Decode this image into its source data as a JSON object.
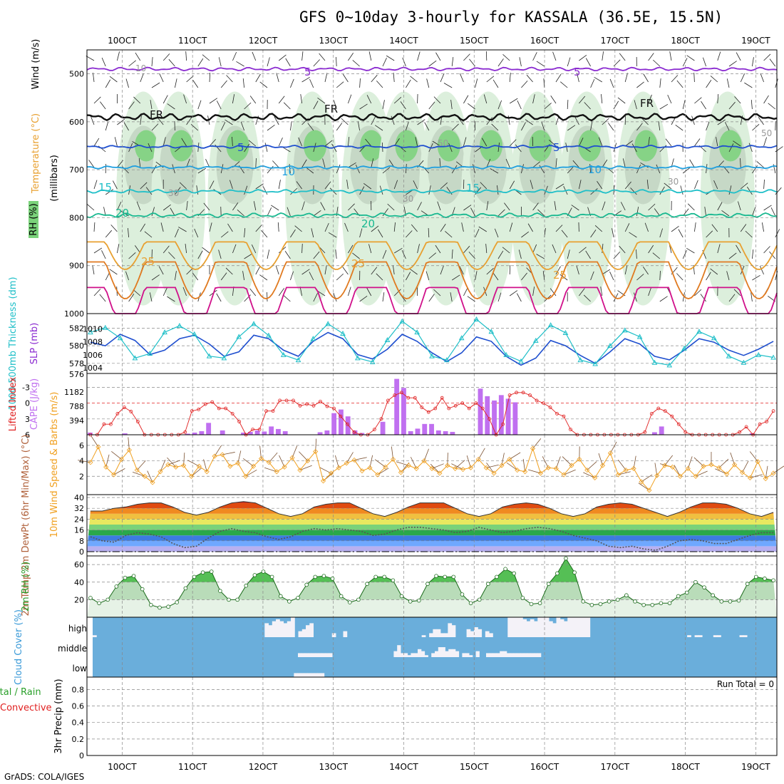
{
  "title": "GFS 0~10day 3-hourly for KASSALA (36.5E, 15.5N)",
  "footer": "GrADS: COLA/IGES",
  "colors": {
    "rh_green": "#7ad27a",
    "rh_light": "#dcefdc",
    "rh_gray": "#b8c8b8",
    "purple": "#8a2ad0",
    "blue": "#1f4fcf",
    "lightblue": "#1f9fdf",
    "cyan": "#1fbfc8",
    "teal": "#18b890",
    "orange": "#e8a030",
    "darkorange": "#e07a20",
    "magenta": "#d0108a",
    "red": "#e02020",
    "cape": "#c070f0",
    "wind10": "#f0a020",
    "sky": "#6aaedb"
  },
  "chart_data": [
    {
      "type": "heatmap",
      "panel": "upper-air",
      "x_ticks": [
        "10OCT",
        "11OCT",
        "12OCT",
        "13OCT",
        "14OCT",
        "15OCT",
        "16OCT",
        "17OCT",
        "18OCT",
        "19OCT"
      ],
      "x_days": [
        1,
        2,
        3,
        4,
        5,
        6,
        7,
        8,
        9,
        10
      ],
      "xlim": [
        0.5,
        10.3
      ],
      "ylabel": "(millibars)",
      "yticks": [
        500,
        600,
        700,
        800,
        900,
        1000
      ],
      "ylim": [
        1000,
        450
      ],
      "side_labels": {
        "rh": "RH (%)",
        "temp": "Temperature (°C)",
        "wind": "Wind (m/s)"
      },
      "contour_labels": [
        "5",
        "FR",
        "FR",
        "FR",
        "5",
        "5",
        "5",
        "10",
        "10",
        "15",
        "15",
        "20",
        "20",
        "25",
        "25",
        "25",
        "30",
        "30",
        "30",
        "50",
        "50",
        "10"
      ],
      "isotherms": [
        {
          "name": "5 upper",
          "level": 490,
          "amp": 6
        },
        {
          "name": "FR",
          "level": 590,
          "amp": 12
        },
        {
          "name": "5",
          "level": 652,
          "amp": 5
        },
        {
          "name": "10",
          "level": 695,
          "amp": 5
        },
        {
          "name": "15",
          "level": 745,
          "amp": 6
        },
        {
          "name": "20",
          "level": 795,
          "amp": 8
        },
        {
          "name": "25",
          "level": 860,
          "amp": 30
        },
        {
          "name": "30",
          "level": 905,
          "amp": 40
        },
        {
          "name": "35",
          "level": 960,
          "amp": 45
        }
      ],
      "moist_days": [
        1.3,
        1.8,
        2.6,
        3.7,
        4.5,
        5.0,
        5.6,
        6.2,
        6.9,
        7.6,
        8.4,
        9.6
      ]
    },
    {
      "type": "line",
      "panel": "thickness-slp",
      "ylabel_left": "1000-500mb Thickness (dm)",
      "ylabel_right": "SLP (mb)",
      "left_ticks": [
        "578",
        "580",
        "582"
      ],
      "right_ticks": [
        "1004",
        "1006",
        "1008",
        "1010"
      ],
      "bottom_label": "576",
      "series": [
        {
          "name": "thickness",
          "values": [
            580.4,
            580.0,
            581.3,
            580.6,
            579.0,
            579.5,
            580.8,
            581.2,
            580.2,
            578.8,
            579.3,
            581.2,
            580.8,
            579.5,
            578.8,
            580.5,
            581.5,
            580.8,
            579.0,
            578.5,
            579.6,
            581.3,
            580.5,
            579.2,
            578.2,
            579.2,
            581.0,
            580.5,
            578.8,
            577.8,
            578.6,
            580.6,
            580.0,
            578.9,
            578.0,
            579.3,
            580.8,
            580.2,
            578.8,
            578.4,
            579.5,
            580.8,
            580.4,
            579.5,
            578.9,
            579.6,
            580.5
          ]
        },
        {
          "name": "slp",
          "values": [
            1009.5,
            1010.2,
            1008.6,
            1005.5,
            1006.2,
            1009.5,
            1010.5,
            1009.2,
            1005.8,
            1005.5,
            1008.8,
            1010.8,
            1009.0,
            1006.0,
            1005.2,
            1008.5,
            1010.8,
            1009.3,
            1005.5,
            1004.9,
            1008.3,
            1011.2,
            1009.5,
            1005.8,
            1005.2,
            1008.6,
            1011.5,
            1009.6,
            1006.0,
            1005.0,
            1008.2,
            1010.6,
            1009.4,
            1005.2,
            1004.6,
            1007.4,
            1009.8,
            1008.8,
            1004.8,
            1004.4,
            1007.0,
            1009.6,
            1008.6,
            1005.8,
            1004.8,
            1006.0,
            1005.6
          ]
        }
      ]
    },
    {
      "type": "bar",
      "panel": "cape-li",
      "ylabel_left": "Lifted Index",
      "ylabel_right": "CAPE (J/kg)",
      "left_ticks": [
        "-3",
        "0",
        "3",
        "6"
      ],
      "right_ticks": [
        "1182",
        "788",
        "394"
      ],
      "li_dashed_zero": true,
      "cape": [
        60,
        0,
        0,
        0,
        0,
        40,
        0,
        0,
        0,
        0,
        0,
        0,
        0,
        0,
        30,
        60,
        100,
        330,
        0,
        120,
        0,
        0,
        60,
        80,
        120,
        90,
        230,
        160,
        100,
        0,
        0,
        0,
        0,
        70,
        120,
        600,
        700,
        510,
        120,
        50,
        0,
        0,
        360,
        0,
        1550,
        1300,
        100,
        170,
        300,
        300,
        120,
        100,
        80,
        0,
        0,
        0,
        1280,
        1070,
        950,
        1100,
        1000,
        900,
        0,
        0,
        0,
        0,
        0,
        0,
        0,
        0,
        0,
        0,
        0,
        0,
        0,
        0,
        0,
        0,
        0,
        0,
        0,
        70,
        230,
        0,
        0,
        0,
        0,
        0,
        0,
        0,
        0,
        0,
        0,
        0,
        0,
        40,
        0,
        0,
        0
      ],
      "li": [
        6,
        6,
        4,
        4,
        2,
        0.8,
        1.6,
        3.5,
        6,
        6,
        6,
        6,
        6,
        6,
        5.5,
        1.5,
        1.2,
        0.2,
        -0.2,
        1,
        1,
        2,
        3.5,
        6,
        5,
        5,
        1.5,
        1.5,
        -0.5,
        -0.5,
        -0.5,
        0.5,
        0.2,
        0.5,
        -0.3,
        0.6,
        1,
        2.5,
        4,
        5.5,
        6,
        6,
        5,
        3,
        -0.5,
        -1.5,
        -2,
        -1,
        -1,
        0.8,
        1.7,
        1,
        -1,
        1,
        0.5,
        0,
        1,
        0,
        1,
        3,
        6,
        4,
        -1.5,
        -2,
        -2,
        -1.5,
        -0.5,
        0,
        0.8,
        2,
        2.5,
        5,
        6,
        6,
        6,
        6,
        6,
        6,
        6,
        6,
        6,
        6,
        5.5,
        2,
        1,
        1.5,
        2.5,
        4,
        5.5,
        6,
        6,
        6,
        6,
        6,
        6,
        6,
        5.5,
        4.5,
        6,
        4,
        3.5,
        1.5
      ]
    },
    {
      "type": "line",
      "panel": "wind10m",
      "ylabel": "10m Wind Speed & Barbs (m/s)",
      "yticks": [
        "2",
        "4",
        "6"
      ],
      "ylim": [
        0,
        7
      ],
      "values": [
        3.8,
        5.8,
        3.2,
        2.2,
        4.2,
        5.4,
        2.8,
        2.0,
        1.2,
        2.6,
        3.5,
        3.2,
        3.4,
        2.0,
        3.3,
        2.6,
        4.6,
        4.8,
        3.3,
        3.7,
        2.0,
        3.3,
        4.3,
        3.8,
        2.6,
        3.2,
        4.4,
        2.8,
        4.0,
        5.2,
        1.4,
        2.4,
        3.1,
        3.7,
        4.1,
        2.7,
        3.1,
        2.2,
        3.2,
        4.2,
        2.5,
        3.4,
        3.0,
        4.0,
        3.0,
        2.4,
        3.4,
        3.0,
        2.9,
        3.1,
        4.2,
        3.1,
        2.4,
        3.4,
        4.2,
        2.8,
        2.6,
        5.6,
        2.4,
        3.1,
        3.0,
        2.2,
        3.4,
        4.2,
        2.8,
        1.8,
        3.4,
        5.0,
        2.2,
        2.8,
        3.0,
        1.3,
        0.2,
        2.1,
        3.4,
        3.2,
        2.0,
        3.0,
        2.0,
        3.3,
        3.5,
        3.1,
        2.3,
        3.5,
        2.5,
        1.8,
        3.9,
        1.7,
        2.4
      ]
    },
    {
      "type": "area",
      "panel": "temp2m",
      "ylabel": "2m Temp 2m DewPt (6hr Min/Max) (°C)",
      "yticks": [
        "0",
        "8",
        "16",
        "24",
        "32",
        "40"
      ],
      "ylim": [
        0,
        40
      ],
      "temp": [
        30,
        30,
        32,
        33,
        35,
        36,
        36,
        33,
        29,
        27,
        29,
        33,
        36,
        37,
        36,
        32,
        28,
        26,
        28,
        33,
        35,
        36,
        36,
        32,
        28,
        26,
        29,
        33,
        36,
        36,
        36,
        32,
        28,
        26,
        28,
        33,
        35,
        36,
        35,
        32,
        28,
        26,
        28,
        33,
        35,
        36,
        35,
        32,
        29,
        26,
        29,
        33,
        36,
        36,
        35,
        32,
        28,
        26,
        29
      ],
      "dewpt": [
        11,
        8,
        7,
        12,
        14,
        13,
        11,
        6,
        3,
        4,
        10,
        15,
        17,
        15,
        14,
        11,
        9,
        11,
        15,
        17,
        16,
        17,
        16,
        15,
        12,
        13,
        16,
        18,
        18,
        17,
        16,
        14,
        15,
        18,
        16,
        14,
        15,
        17,
        18,
        17,
        15,
        12,
        10,
        8,
        4,
        3,
        4,
        2,
        1,
        4,
        8,
        9,
        8,
        6,
        6,
        9,
        12,
        14,
        14
      ]
    },
    {
      "type": "area",
      "panel": "rh2m",
      "ylabel": "2m RH (%)",
      "yticks": [
        "20",
        "40",
        "60"
      ],
      "ylim": [
        0,
        65
      ],
      "values": [
        22,
        16,
        20,
        35,
        45,
        47,
        32,
        14,
        11,
        12,
        17,
        33,
        46,
        51,
        52,
        30,
        20,
        20,
        36,
        48,
        52,
        46,
        24,
        18,
        22,
        37,
        46,
        47,
        44,
        24,
        17,
        20,
        38,
        46,
        46,
        42,
        24,
        18,
        19,
        38,
        47,
        46,
        46,
        26,
        16,
        20,
        38,
        46,
        55,
        50,
        22,
        15,
        16,
        38,
        50,
        67,
        51,
        18,
        14,
        15,
        18,
        20,
        25,
        18,
        14,
        14,
        16,
        16,
        24,
        28,
        40,
        34,
        25,
        18,
        18,
        19,
        38,
        46,
        44,
        42
      ]
    },
    {
      "type": "heatmap",
      "panel": "cloud-cover",
      "ylabel": "Cloud Cover (%)",
      "rows": [
        "high",
        "middle",
        "low"
      ],
      "high": [
        10,
        0,
        0,
        0,
        0,
        0,
        0,
        0,
        0,
        0,
        0,
        0,
        0,
        0,
        0,
        0,
        0,
        0,
        0,
        0,
        0,
        0,
        0,
        0,
        0,
        0,
        0,
        0,
        0,
        0,
        0,
        0,
        0,
        0,
        0,
        0,
        0,
        0,
        0,
        0,
        0,
        0,
        0,
        0,
        0,
        0,
        70,
        60,
        80,
        90,
        80,
        70,
        80,
        100,
        0,
        30,
        40,
        60,
        70,
        0,
        0,
        0,
        0,
        0,
        20,
        0,
        0,
        30,
        0,
        0,
        0,
        0,
        0,
        0,
        0,
        0,
        0,
        0,
        0,
        0,
        0,
        0,
        0,
        0,
        0,
        0,
        0,
        0,
        10,
        0,
        20,
        40,
        40,
        20,
        20,
        70,
        60,
        0,
        0,
        0,
        40,
        30,
        50,
        40,
        0,
        30,
        20,
        0,
        0,
        0,
        0,
        100,
        100,
        100,
        100,
        90,
        80,
        90,
        80,
        100,
        100,
        100,
        80,
        70,
        100,
        90,
        80,
        100,
        100,
        100,
        100,
        100,
        100,
        0,
        0,
        0,
        0,
        0,
        0,
        0,
        0,
        0,
        0,
        0,
        0,
        0,
        0,
        0,
        0,
        0,
        0,
        0,
        0,
        0,
        0,
        0,
        0,
        0,
        0,
        10,
        0,
        10,
        10,
        0,
        0,
        0,
        10,
        10,
        0,
        0,
        0,
        0,
        0,
        10,
        10,
        0,
        0,
        0,
        0,
        0,
        0,
        0,
        0
      ],
      "middle": [
        0,
        0,
        0,
        0,
        0,
        0,
        0,
        0,
        0,
        0,
        0,
        0,
        0,
        0,
        0,
        0,
        0,
        0,
        0,
        0,
        0,
        0,
        0,
        0,
        0,
        0,
        0,
        0,
        0,
        0,
        0,
        0,
        0,
        0,
        0,
        0,
        0,
        0,
        0,
        0,
        0,
        0,
        0,
        0,
        0,
        0,
        0,
        0,
        0,
        0,
        0,
        0,
        0,
        0,
        0,
        0,
        0,
        0,
        0,
        0,
        20,
        20,
        20,
        20,
        20,
        20,
        20,
        20,
        20,
        20,
        0,
        0,
        0,
        0,
        0,
        0,
        0,
        0,
        0,
        0,
        0,
        0,
        0,
        0,
        0,
        0,
        0,
        0,
        30,
        60,
        20,
        20,
        10,
        20,
        20,
        40,
        30,
        10,
        0,
        20,
        30,
        50,
        50,
        30,
        40,
        40,
        30,
        0,
        20,
        20,
        10,
        0,
        30,
        0,
        0,
        20,
        20,
        20,
        20,
        30,
        30,
        20,
        20,
        20,
        20,
        20,
        20,
        20,
        20,
        20,
        20,
        0,
        0,
        0,
        0,
        0,
        0,
        0,
        0,
        0,
        0,
        0,
        0,
        0,
        0,
        0,
        0,
        0,
        0,
        0,
        0,
        0,
        0,
        0,
        0,
        0,
        0,
        0,
        0,
        0,
        0,
        0,
        0,
        0,
        0,
        0,
        0,
        0,
        0,
        0,
        0,
        0,
        0,
        0,
        0,
        0,
        0,
        0,
        0,
        0,
        0,
        0,
        0,
        0,
        0,
        0,
        0,
        0,
        0,
        0,
        0,
        0,
        0,
        0,
        0,
        0,
        0,
        0,
        0,
        0
      ],
      "low": [
        0,
        0,
        0,
        0,
        0,
        0,
        0,
        0,
        0,
        0,
        0,
        0,
        0,
        0,
        0,
        0,
        0,
        0,
        0,
        0,
        0,
        0,
        0,
        0,
        0,
        0,
        0,
        0,
        0,
        0,
        0,
        0,
        0,
        0,
        0,
        0,
        0,
        0,
        0,
        0,
        0,
        0,
        0,
        0,
        0,
        0,
        0,
        0,
        0,
        0,
        0,
        0,
        0,
        0,
        0,
        0,
        0,
        0,
        0,
        0,
        20,
        20,
        20,
        20,
        20,
        20,
        20,
        20,
        20,
        0,
        0,
        0,
        0,
        0,
        0,
        0,
        0,
        0,
        0,
        0,
        0,
        0,
        0,
        0,
        0,
        0,
        0,
        0,
        0,
        0,
        0,
        0,
        0,
        0,
        0,
        0,
        0,
        0,
        0,
        0,
        0,
        0,
        0,
        0,
        0,
        0,
        0,
        0,
        0,
        0,
        0,
        0,
        0,
        0,
        0,
        0,
        0,
        0,
        0,
        0,
        0,
        0,
        0,
        0,
        0,
        0,
        0,
        0,
        0,
        0,
        0,
        0,
        0,
        0,
        0,
        0,
        0,
        0,
        0,
        0,
        0,
        0,
        0,
        0,
        0,
        0,
        0,
        0,
        0,
        0,
        0,
        0,
        0,
        0,
        0,
        0,
        0,
        0,
        0,
        0,
        0,
        0,
        0,
        0,
        0,
        0,
        0,
        0,
        0,
        0,
        0,
        0,
        0,
        0,
        0,
        0,
        0,
        0,
        0,
        0,
        0,
        0,
        0,
        0,
        0,
        0,
        0,
        0,
        0,
        0,
        0,
        0,
        0,
        0,
        0,
        0,
        0,
        0,
        0,
        0,
        0,
        0,
        0,
        0
      ]
    },
    {
      "type": "bar",
      "panel": "precip",
      "ylabel": "3hr Precip (mm)",
      "side_labels": {
        "total": "Total / Rain",
        "conv": "Convective"
      },
      "yticks": [
        "0",
        "0.2",
        "0.4",
        "0.6",
        "0.8"
      ],
      "ylim": [
        0,
        0.95
      ],
      "run_total": "Run Total = 0",
      "values": []
    }
  ]
}
